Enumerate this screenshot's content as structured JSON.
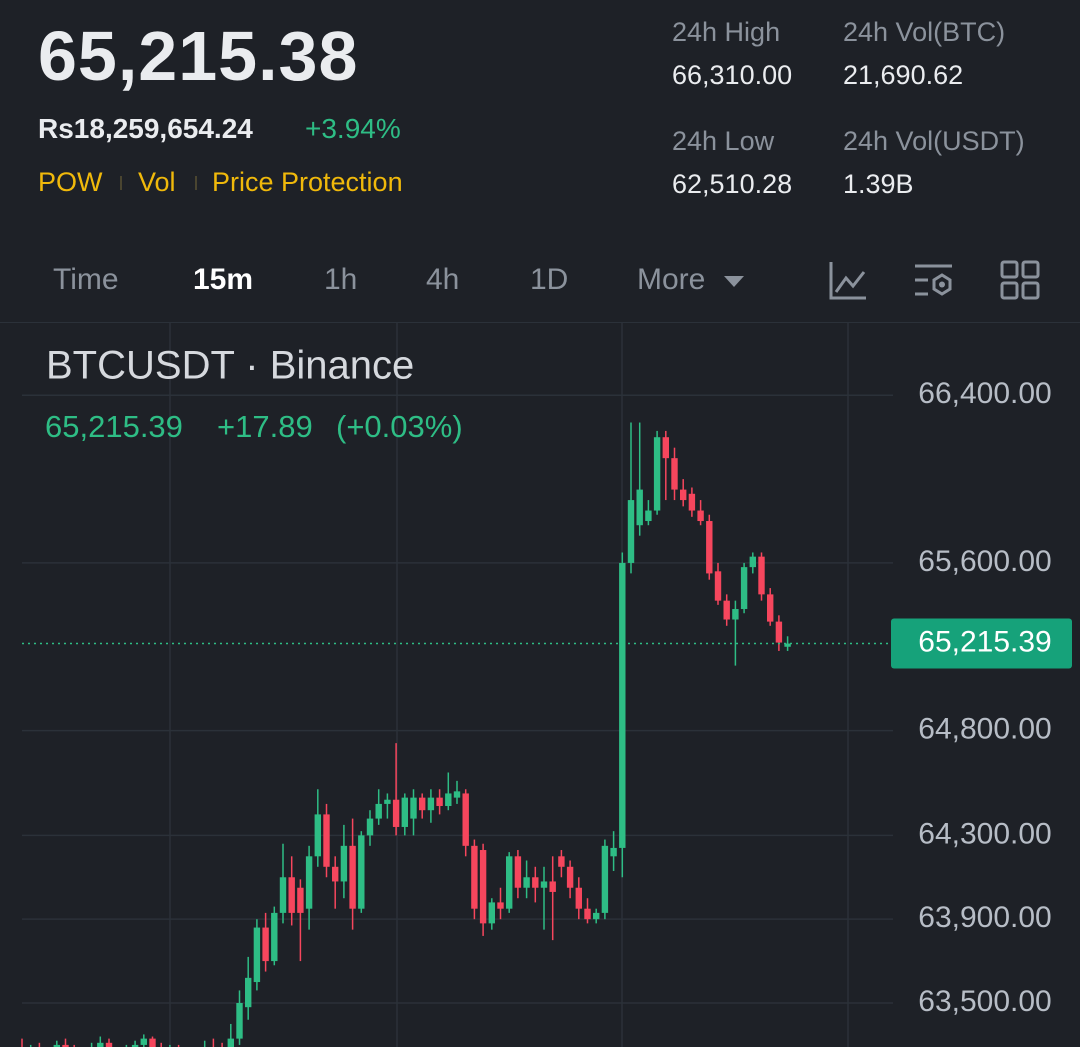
{
  "header": {
    "price": "65,215.38",
    "fiat_price": "Rs18,259,654.24",
    "change": "+3.94%",
    "tags": [
      "POW",
      "Vol",
      "Price Protection"
    ],
    "stats": [
      {
        "label": "24h High",
        "value": "66,310.00"
      },
      {
        "label": "24h Vol(BTC)",
        "value": "21,690.62"
      },
      {
        "label": "24h Low",
        "value": "62,510.28"
      },
      {
        "label": "24h Vol(USDT)",
        "value": "1.39B"
      }
    ]
  },
  "tabs": {
    "items": [
      "Time",
      "15m",
      "1h",
      "4h",
      "1D",
      "More"
    ],
    "active": 1
  },
  "chart_data": {
    "type": "candlestick",
    "title": "BTCUSDT · Binance",
    "change": "+17.89",
    "change_pct": "(+0.03%)",
    "price_line": {
      "value": 65215.39,
      "label": "65,215.39"
    },
    "up_color": "#2ebd85",
    "down_color": "#f6465d",
    "ylim": [
      63290,
      66745
    ],
    "yticks": [
      {
        "value": 66400,
        "label": "66,400.00"
      },
      {
        "value": 65600,
        "label": "65,600.00"
      },
      {
        "value": 64800,
        "label": "64,800.00"
      },
      {
        "value": 64300,
        "label": "64,300.00"
      },
      {
        "value": 63900,
        "label": "63,900.00"
      },
      {
        "value": 63500,
        "label": "63,500.00"
      }
    ],
    "grid": true,
    "open": [
      63250,
      63240,
      63280,
      63230,
      63260,
      63300,
      63270,
      63220,
      63250,
      63290,
      63310,
      63260,
      63240,
      63280,
      63300,
      63330,
      63290,
      63260,
      63280,
      63250,
      63230,
      63260,
      63290,
      63280,
      63230,
      63330,
      63480,
      63600,
      63860,
      63700,
      63930,
      64100,
      64050,
      63950,
      64200,
      64400,
      64150,
      64080,
      64250,
      63950,
      64300,
      64380,
      64450,
      64470,
      64340,
      64380,
      64480,
      64420,
      64480,
      64440,
      64480,
      64500,
      64250,
      64230,
      63880,
      63980,
      63950,
      64200,
      64050,
      64100,
      64050,
      64080,
      64200,
      64150,
      64050,
      63950,
      63900,
      63930,
      64200,
      64240,
      65600,
      65780,
      65800,
      65850,
      66200,
      66100,
      65950,
      65930,
      65850,
      65800,
      65560,
      65420,
      65330,
      65380,
      65580,
      65630,
      65450,
      65320,
      65200
    ],
    "high": [
      63330,
      63300,
      63310,
      63290,
      63320,
      63330,
      63300,
      63280,
      63310,
      63340,
      63330,
      63290,
      63300,
      63320,
      63350,
      63340,
      63310,
      63300,
      63300,
      63280,
      63290,
      63320,
      63330,
      63310,
      63400,
      63560,
      63720,
      63900,
      63930,
      63960,
      64260,
      64200,
      64090,
      64250,
      64520,
      64450,
      64200,
      64350,
      64380,
      64320,
      64420,
      64520,
      64500,
      64740,
      64500,
      64520,
      64500,
      64520,
      64520,
      64600,
      64560,
      64520,
      64280,
      64260,
      64000,
      64050,
      64220,
      64230,
      64180,
      64150,
      64150,
      64200,
      64230,
      64180,
      64100,
      64000,
      63950,
      64280,
      64320,
      65650,
      66270,
      66270,
      65900,
      66230,
      66230,
      66150,
      66000,
      65960,
      65900,
      65830,
      65600,
      65450,
      65420,
      65600,
      65650,
      65650,
      65480,
      65350,
      65250
    ],
    "low": [
      63200,
      63210,
      63200,
      63190,
      63230,
      63240,
      63190,
      63190,
      63220,
      63260,
      63230,
      63200,
      63210,
      63250,
      63270,
      63250,
      63230,
      63230,
      63220,
      63200,
      63200,
      63230,
      63250,
      63190,
      63180,
      63300,
      63420,
      63560,
      63650,
      63680,
      63880,
      63870,
      63700,
      63850,
      64150,
      64100,
      63950,
      64000,
      63850,
      63930,
      64250,
      64350,
      64380,
      64300,
      64300,
      64300,
      64380,
      64360,
      64400,
      64420,
      64450,
      64200,
      63900,
      63820,
      63850,
      63900,
      63930,
      64000,
      64000,
      63980,
      63850,
      63800,
      64100,
      64000,
      63900,
      63880,
      63880,
      63900,
      64130,
      64100,
      65550,
      65730,
      65780,
      65830,
      65900,
      65900,
      65870,
      65820,
      65780,
      65520,
      65400,
      65300,
      65110,
      65360,
      65550,
      65420,
      65300,
      65180,
      65180
    ],
    "close": [
      63240,
      63280,
      63230,
      63260,
      63300,
      63270,
      63220,
      63250,
      63290,
      63310,
      63260,
      63240,
      63280,
      63300,
      63330,
      63290,
      63260,
      63280,
      63250,
      63230,
      63260,
      63290,
      63280,
      63230,
      63330,
      63500,
      63620,
      63860,
      63700,
      63930,
      64100,
      63930,
      63930,
      64200,
      64400,
      64150,
      64080,
      64250,
      63950,
      64300,
      64380,
      64450,
      64470,
      64340,
      64480,
      64480,
      64420,
      64480,
      64440,
      64500,
      64510,
      64250,
      63950,
      63880,
      63980,
      63950,
      64200,
      64050,
      64100,
      64050,
      64080,
      64030,
      64150,
      64050,
      63950,
      63900,
      63930,
      64250,
      64240,
      65600,
      65900,
      65950,
      65850,
      66200,
      66100,
      65950,
      65900,
      65850,
      65800,
      65550,
      65420,
      65330,
      65380,
      65580,
      65630,
      65450,
      65320,
      65220,
      65215.39
    ]
  }
}
